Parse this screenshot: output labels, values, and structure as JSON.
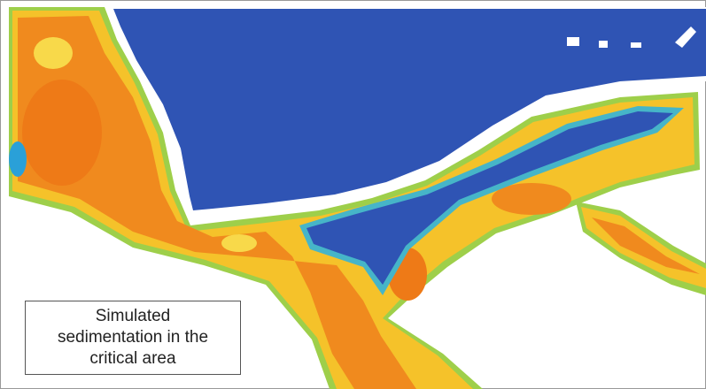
{
  "label": "Simulated sedimentation in the critical area"
}
